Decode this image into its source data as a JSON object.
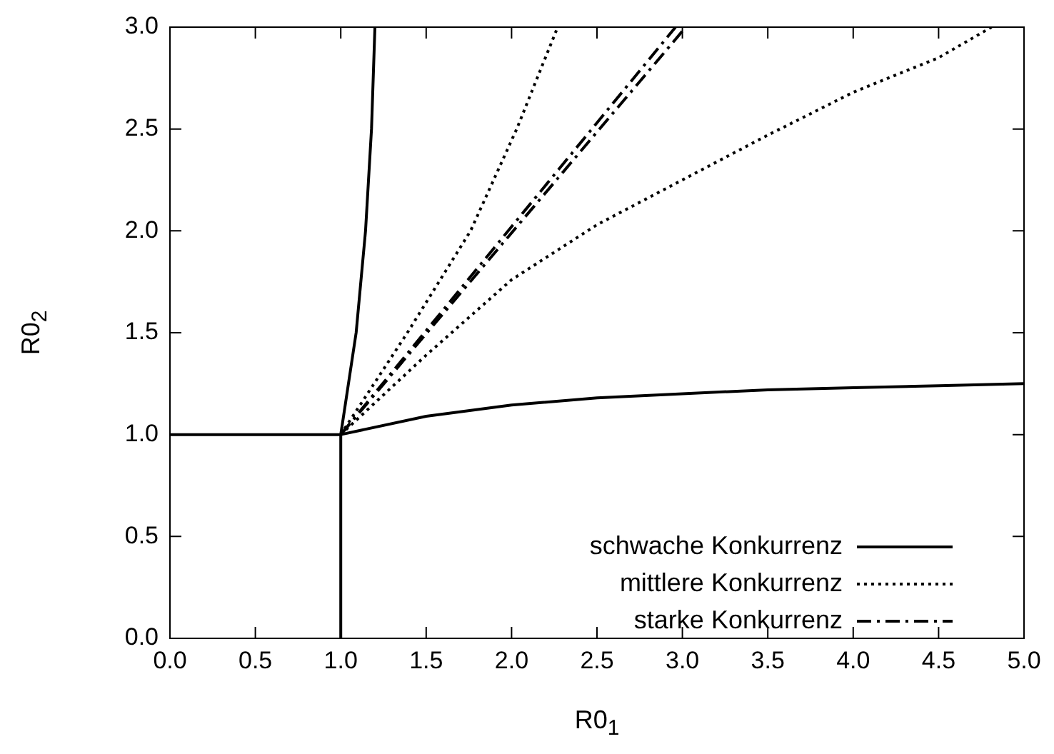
{
  "chart_data": {
    "type": "line",
    "xlabel": "R0$_{1}$",
    "ylabel": "R0$_{2}$",
    "xlim": [
      0,
      5
    ],
    "ylim": [
      0,
      3
    ],
    "xticks": [
      {
        "value": 0,
        "label": "0.0"
      },
      0.5,
      {
        "value": 1,
        "label": "1.0"
      },
      1.5,
      {
        "value": 2,
        "label": "2.0"
      },
      2.5,
      {
        "value": 3,
        "label": "3.0"
      },
      3.5,
      {
        "value": 4,
        "label": "4.0"
      },
      4.5,
      {
        "value": 5,
        "label": "5.0"
      }
    ],
    "yticks": [
      {
        "value": 0,
        "label": "0.0"
      },
      0.5,
      {
        "value": 1,
        "label": "1.0"
      },
      1.5,
      {
        "value": 2,
        "label": "2.0"
      },
      2.5,
      {
        "value": 3,
        "label": "3.0"
      }
    ],
    "grid": false,
    "legend": "bottom right",
    "marker": "none",
    "series": [
      {
        "name": "schwache Konkurrenz",
        "color": "#000000",
        "line_style": "solid",
        "x": [
          0,
          1,
          1.5,
          2,
          2.5,
          3,
          3.5,
          4,
          4.5,
          5
        ],
        "values": [
          1,
          1,
          1.09,
          1.145,
          1.18,
          1.2,
          1.22,
          1.23,
          1.24,
          1.25
        ]
      },
      {
        "color": "#000000",
        "line_style": "solid",
        "x": [
          1,
          1,
          1.09,
          1.145,
          1.18,
          1.2
        ],
        "values": [
          0,
          1,
          1.5,
          2,
          2.5,
          3
        ]
      },
      {
        "name": "mittlere Konkurrenz",
        "color": "#000000",
        "line_style": "dotted",
        "x": [
          1,
          1.5,
          2,
          2.5,
          3,
          3.5,
          4,
          4.5,
          4.81
        ],
        "values": [
          1,
          1.39,
          1.76,
          2.03,
          2.25,
          2.47,
          2.68,
          2.85,
          3
        ]
      },
      {
        "color": "#000000",
        "line_style": "dotted",
        "x": [
          1,
          1.39,
          1.76,
          2.03,
          2.27
        ],
        "values": [
          1,
          1.5,
          2,
          2.5,
          3
        ]
      },
      {
        "name": "starke Konkurrenz",
        "color": "#000000",
        "line_style": "dashdot",
        "x": [
          1,
          2.96
        ],
        "values": [
          1,
          3
        ]
      },
      {
        "color": "#000000",
        "line_style": "dashdot",
        "x": [
          1,
          3.02
        ],
        "values": [
          1,
          3
        ]
      }
    ]
  }
}
